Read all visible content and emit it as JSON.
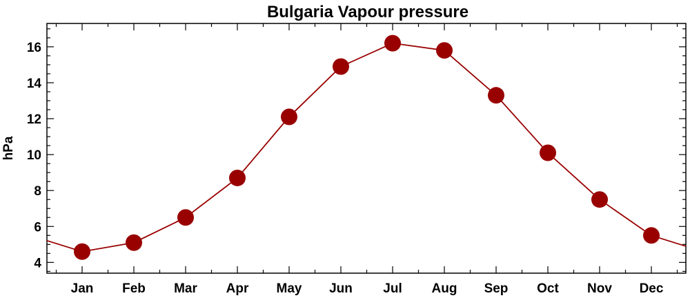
{
  "chart_data": {
    "type": "line",
    "title": "Bulgaria Vapour pressure",
    "xlabel": "",
    "ylabel": "hPa",
    "categories": [
      "Jan",
      "Feb",
      "Mar",
      "Apr",
      "May",
      "Jun",
      "Jul",
      "Aug",
      "Sep",
      "Oct",
      "Nov",
      "Dec"
    ],
    "series": [
      {
        "values": [
          4.6,
          5.1,
          6.5,
          8.7,
          12.1,
          14.9,
          16.2,
          15.8,
          13.3,
          10.1,
          7.5,
          5.5
        ],
        "color": "#990000"
      }
    ],
    "ylim": [
      3.4,
      17.3
    ],
    "yticks": [
      4,
      6,
      8,
      10,
      12,
      14,
      16
    ],
    "grid": false,
    "legend": "none"
  }
}
